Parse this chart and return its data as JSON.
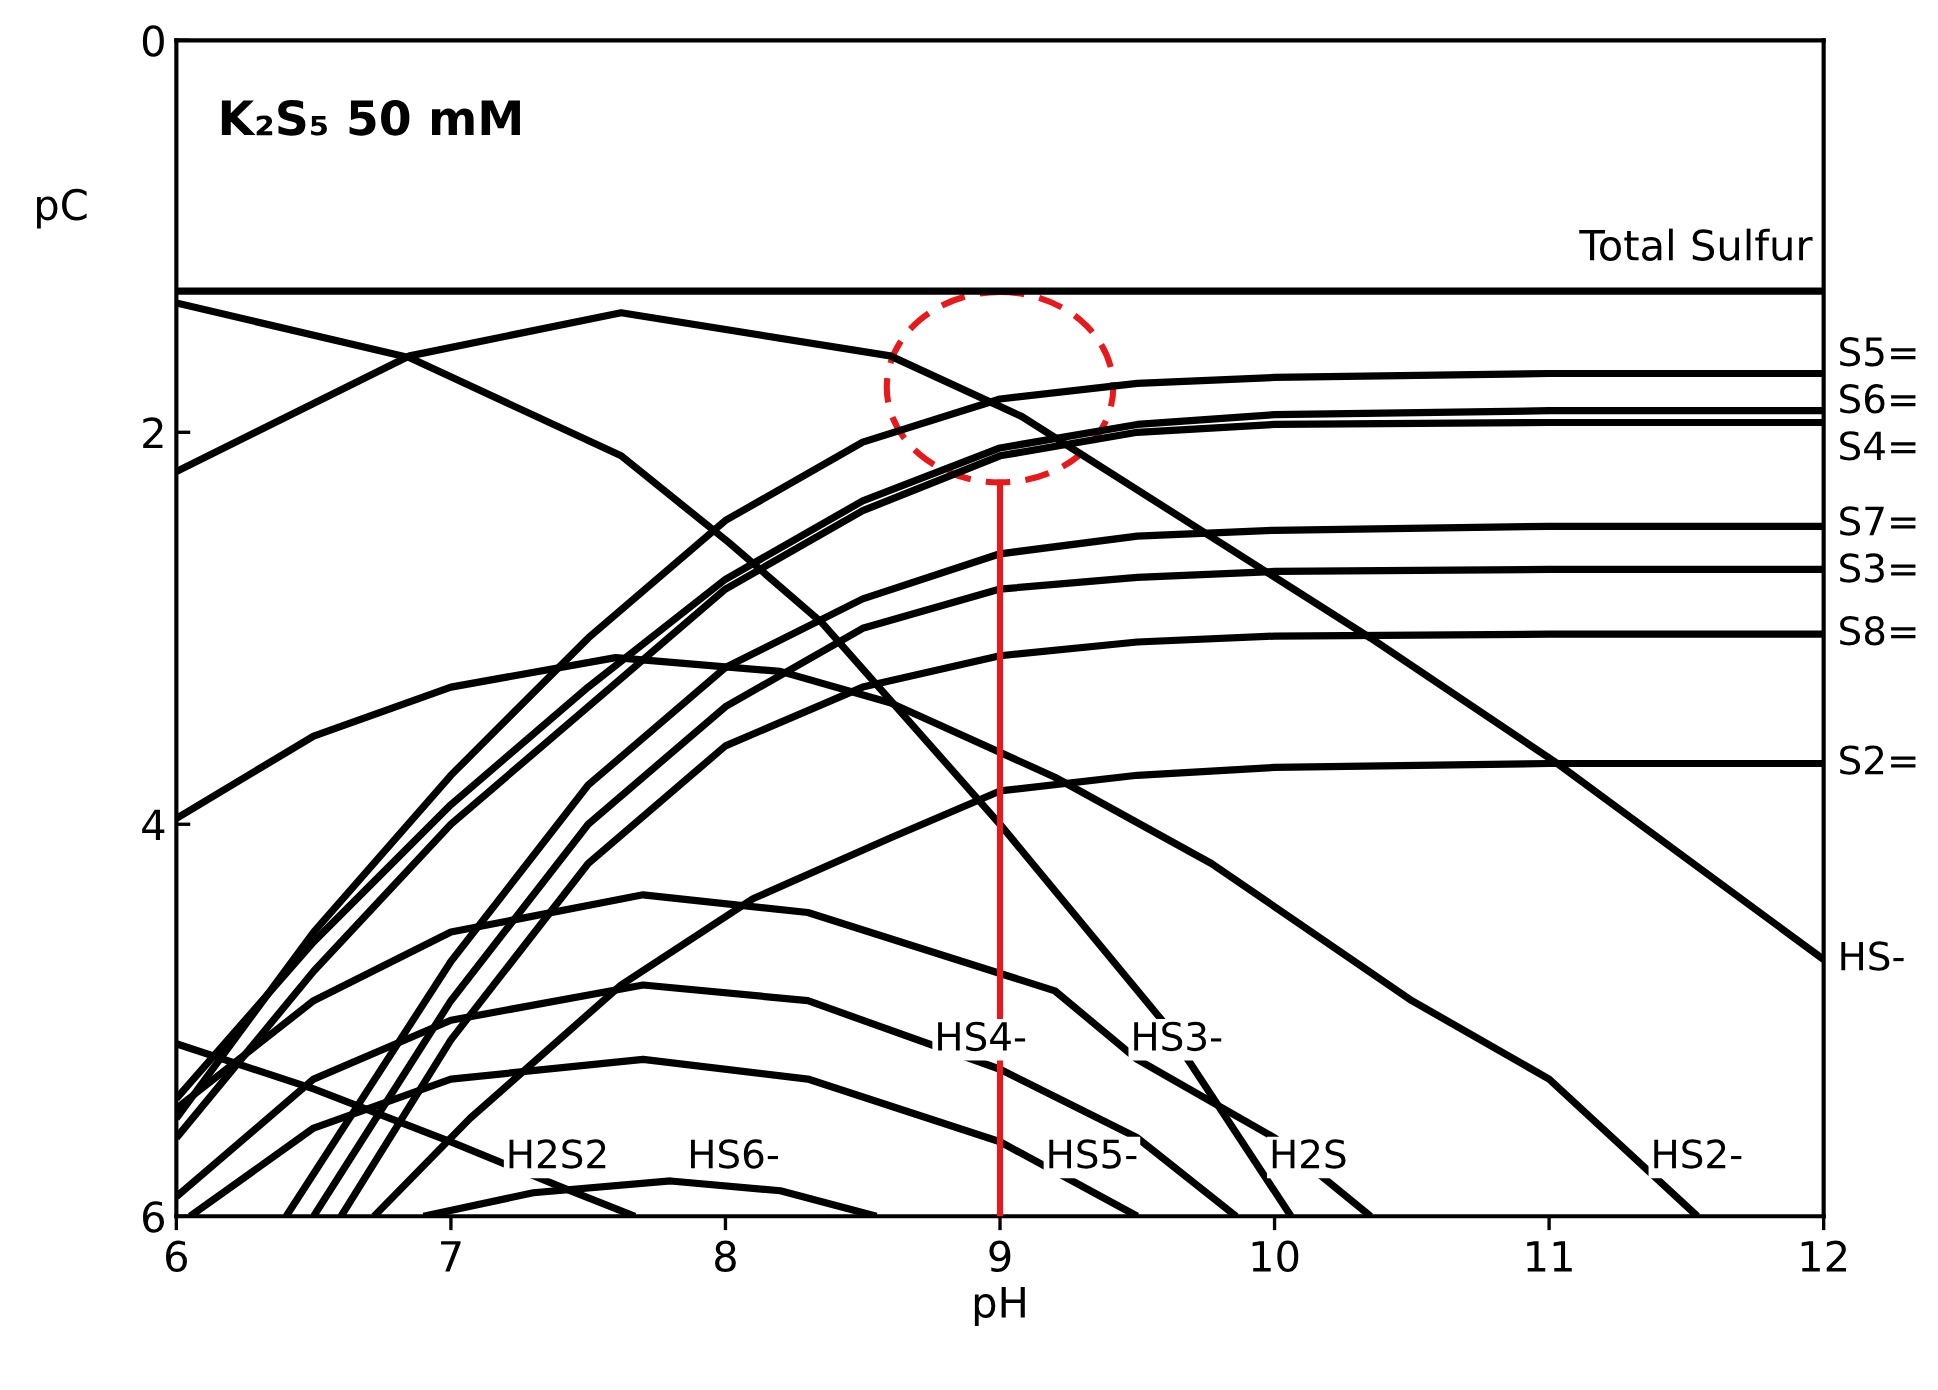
{
  "chart_data": {
    "type": "line",
    "title": "K₂S₅ 50 mM",
    "xlabel": "pH",
    "ylabel": "pC",
    "xlim": [
      6,
      12
    ],
    "xticks": [
      6,
      7,
      8,
      9,
      10,
      11,
      12
    ],
    "ylim": [
      6,
      0
    ],
    "yticks": [
      0,
      2,
      4,
      6
    ],
    "grid": false,
    "legend": false,
    "marker": "none",
    "line_style": "solid",
    "series": [
      {
        "name": "Total Sulfur",
        "color": "#000000",
        "x": [
          6,
          12
        ],
        "values": [
          1.28,
          1.28
        ]
      },
      {
        "name": "S5=",
        "color": "#000000",
        "x": [
          6,
          6.5,
          7,
          7.5,
          8,
          8.5,
          9,
          9.5,
          10,
          11,
          12
        ],
        "values": [
          5.5,
          4.55,
          3.75,
          3.05,
          2.45,
          2.05,
          1.83,
          1.75,
          1.72,
          1.7,
          1.7
        ]
      },
      {
        "name": "S6=",
        "color": "#000000",
        "x": [
          6,
          6.5,
          7,
          7.5,
          8,
          8.5,
          9,
          9.5,
          10,
          11,
          12
        ],
        "values": [
          5.4,
          4.6,
          3.9,
          3.3,
          2.75,
          2.35,
          2.08,
          1.96,
          1.91,
          1.89,
          1.89
        ]
      },
      {
        "name": "S4=",
        "color": "#000000",
        "x": [
          6,
          6.5,
          7,
          7.5,
          8,
          8.5,
          9,
          9.5,
          10,
          11,
          12
        ],
        "values": [
          5.6,
          4.75,
          4.0,
          3.4,
          2.8,
          2.4,
          2.12,
          2.0,
          1.96,
          1.95,
          1.95
        ]
      },
      {
        "name": "S7=",
        "color": "#000000",
        "x": [
          6.4,
          7,
          7.5,
          8,
          8.5,
          9,
          9.5,
          10,
          11,
          12
        ],
        "values": [
          6.0,
          4.7,
          3.8,
          3.2,
          2.85,
          2.62,
          2.53,
          2.5,
          2.48,
          2.48
        ]
      },
      {
        "name": "S3=",
        "color": "#000000",
        "x": [
          6.5,
          7,
          7.5,
          8,
          8.5,
          9,
          9.5,
          10,
          11,
          12
        ],
        "values": [
          6.0,
          4.9,
          4.0,
          3.4,
          3.0,
          2.8,
          2.74,
          2.71,
          2.7,
          2.7
        ]
      },
      {
        "name": "S8=",
        "color": "#000000",
        "x": [
          6.6,
          7,
          7.5,
          8,
          8.5,
          9,
          9.5,
          10,
          11,
          12
        ],
        "values": [
          6.0,
          5.1,
          4.2,
          3.6,
          3.3,
          3.14,
          3.07,
          3.04,
          3.03,
          3.03
        ]
      },
      {
        "name": "S2=",
        "color": "#000000",
        "x": [
          6.72,
          7.07,
          7.62,
          8.1,
          8.6,
          9,
          9.5,
          10,
          11,
          12
        ],
        "values": [
          6.0,
          5.5,
          4.82,
          4.38,
          4.07,
          3.83,
          3.75,
          3.71,
          3.69,
          3.69
        ]
      },
      {
        "name": "HS-",
        "color": "#000000",
        "x": [
          6,
          6.85,
          7.62,
          8.6,
          9.08,
          10.35,
          11.03,
          12
        ],
        "values": [
          2.2,
          1.61,
          1.39,
          1.61,
          1.92,
          3.05,
          3.69,
          4.69
        ]
      },
      {
        "name": "H2S",
        "color": "#000000",
        "x": [
          6,
          6.85,
          7.62,
          8.01,
          8.35,
          9,
          9.59,
          10.06
        ],
        "values": [
          1.34,
          1.62,
          2.12,
          2.56,
          2.97,
          4.0,
          5.0,
          6.0
        ]
      },
      {
        "name": "H2S2",
        "color": "#000000",
        "x": [
          6,
          6.5,
          7,
          7.4,
          7.67
        ],
        "values": [
          5.12,
          5.35,
          5.62,
          5.85,
          6.0
        ]
      },
      {
        "name": "HS2-",
        "color": "#000000",
        "x": [
          6,
          6.5,
          7,
          7.6,
          8.2,
          8.6,
          9.2,
          9.77,
          10.5,
          11,
          11.54
        ],
        "values": [
          3.97,
          3.55,
          3.3,
          3.15,
          3.22,
          3.38,
          3.76,
          4.2,
          4.9,
          5.3,
          6.0
        ]
      },
      {
        "name": "HS3-",
        "color": "#000000",
        "x": [
          6,
          6.5,
          7,
          7.7,
          8.3,
          8.84,
          9.2,
          9.5,
          10,
          10.35
        ],
        "values": [
          5.45,
          4.9,
          4.55,
          4.36,
          4.45,
          4.69,
          4.85,
          5.2,
          5.6,
          6.0
        ]
      },
      {
        "name": "HS4-",
        "color": "#000000",
        "x": [
          6,
          6.5,
          7,
          7.7,
          8.3,
          9,
          9.5,
          9.86
        ],
        "values": [
          5.9,
          5.3,
          5.0,
          4.82,
          4.9,
          5.25,
          5.6,
          6.0
        ]
      },
      {
        "name": "HS5-",
        "color": "#000000",
        "x": [
          6.05,
          6.5,
          7,
          7.7,
          8.3,
          9,
          9.5
        ],
        "values": [
          6.0,
          5.55,
          5.3,
          5.2,
          5.3,
          5.62,
          6.0
        ]
      },
      {
        "name": "HS6-",
        "color": "#000000",
        "x": [
          6.9,
          7.3,
          7.8,
          8.2,
          8.55
        ],
        "values": [
          6.0,
          5.88,
          5.82,
          5.87,
          6.0
        ]
      }
    ],
    "ref_lines": [
      {
        "axis": "x",
        "value": 9,
        "color": "#e8191c"
      }
    ]
  }
}
